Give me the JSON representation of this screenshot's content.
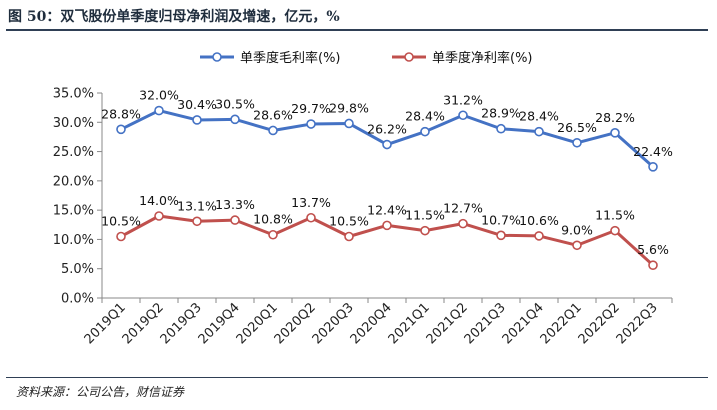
{
  "header": {
    "title": "图 50：双飞股份单季度归母净利润及增速，亿元，%"
  },
  "footer": {
    "source": "资料来源：公司公告，财信证券"
  },
  "chart_data": {
    "type": "line",
    "categories": [
      "2019Q1",
      "2019Q2",
      "2019Q3",
      "2019Q4",
      "2020Q1",
      "2020Q2",
      "2020Q3",
      "2020Q4",
      "2021Q1",
      "2021Q2",
      "2021Q3",
      "2021Q4",
      "2022Q1",
      "2022Q2",
      "2022Q3"
    ],
    "series": [
      {
        "name": "单季度毛利率(%)",
        "color": "#4472c4",
        "values": [
          28.8,
          32.0,
          30.4,
          30.5,
          28.6,
          29.7,
          29.8,
          26.2,
          28.4,
          31.2,
          28.9,
          28.4,
          26.5,
          28.2,
          22.4
        ],
        "labels": [
          "28.8%",
          "32.0%",
          "30.4%",
          "30.5%",
          "28.6%",
          "29.7%",
          "29.8%",
          "26.2%",
          "28.4%",
          "31.2%",
          "28.9%",
          "28.4%",
          "26.5%",
          "28.2%",
          "22.4%"
        ]
      },
      {
        "name": "单季度净利率(%)",
        "color": "#c0504d",
        "values": [
          10.5,
          14.0,
          13.1,
          13.3,
          10.8,
          13.7,
          10.5,
          12.4,
          11.5,
          12.7,
          10.7,
          10.6,
          9.0,
          11.5,
          5.6
        ],
        "labels": [
          "10.5%",
          "14.0%",
          "13.1%",
          "13.3%",
          "10.8%",
          "13.7%",
          "10.5%",
          "12.4%",
          "11.5%",
          "12.7%",
          "10.7%",
          "10.6%",
          "9.0%",
          "11.5%",
          "5.6%"
        ]
      }
    ],
    "yticks": [
      "0.0%",
      "5.0%",
      "10.0%",
      "15.0%",
      "20.0%",
      "25.0%",
      "30.0%",
      "35.0%"
    ],
    "ylim": [
      0,
      35
    ],
    "grid": false,
    "legend_position": "top"
  }
}
